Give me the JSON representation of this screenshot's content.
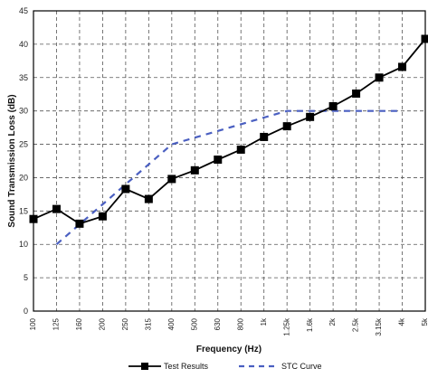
{
  "chart_data": {
    "type": "line",
    "title": "",
    "xlabel": "Frequency (Hz)",
    "ylabel": "Sound Transmission Loss (dB)",
    "ylim": [
      0,
      45
    ],
    "yticks": [
      0,
      5,
      10,
      15,
      20,
      25,
      30,
      35,
      40,
      45
    ],
    "grid": true,
    "legend_position": "bottom",
    "categories": [
      "100",
      "125",
      "160",
      "200",
      "250",
      "315",
      "400",
      "500",
      "630",
      "800",
      "1k",
      "1.25k",
      "1.6k",
      "2k",
      "2.5k",
      "3.15k",
      "4k",
      "5k"
    ],
    "series": [
      {
        "name": "Test Results",
        "style": "solid-square-markers",
        "color": "#000000",
        "values": [
          13.8,
          15.3,
          13.1,
          14.2,
          18.3,
          16.8,
          19.8,
          21.1,
          22.7,
          24.2,
          26.1,
          27.7,
          29.1,
          30.7,
          32.6,
          35.0,
          36.6,
          40.8
        ]
      },
      {
        "name": "STC Curve",
        "style": "dashed",
        "color": "#4a5fc1",
        "values": [
          null,
          10,
          13,
          16,
          19,
          22,
          25,
          26,
          27,
          28,
          29,
          30,
          30,
          30,
          30,
          30,
          30,
          null
        ]
      }
    ]
  }
}
